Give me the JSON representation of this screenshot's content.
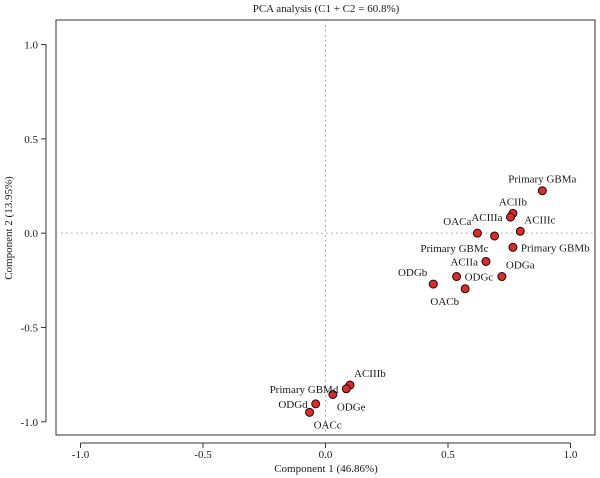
{
  "chart_data": {
    "type": "scatter",
    "title": "PCA analysis (C1 + C2 = 60.8%)",
    "xlabel": "Component 1 (46.86%)",
    "ylabel": "Component 2 (13.95%)",
    "xlim": [
      -1.1,
      1.1
    ],
    "ylim": [
      -1.07,
      1.13
    ],
    "xticks": [
      -1.0,
      -0.5,
      0.0,
      0.5,
      1.0
    ],
    "xtick_labels": [
      "-1.0",
      "-0.5",
      "0.0",
      "0.5",
      "1.0"
    ],
    "yticks": [
      -1.0,
      -0.5,
      0.0,
      0.5,
      1.0
    ],
    "ytick_labels": [
      "-1.0",
      "-0.5",
      "0.0",
      "0.5",
      "1.0"
    ],
    "reference_lines": {
      "x": 0.0,
      "y": 0.0
    },
    "point_color": "#d32f2f",
    "points": [
      {
        "label": "Primary GBMa",
        "x": 0.885,
        "y": 0.225,
        "label_pos": "above"
      },
      {
        "label": "ACIIb",
        "x": 0.765,
        "y": 0.105,
        "label_pos": "above"
      },
      {
        "label": "ACIIIa",
        "x": 0.755,
        "y": 0.085,
        "label_pos": "left"
      },
      {
        "label": "ACIIIc",
        "x": 0.795,
        "y": 0.01,
        "label_pos": "above-right"
      },
      {
        "label": "OACa",
        "x": 0.62,
        "y": 0.0,
        "label_pos": "above-left"
      },
      {
        "label": "Primary GBMc",
        "x": 0.69,
        "y": -0.015,
        "label_pos": "below-left"
      },
      {
        "label": "Primary GBMb",
        "x": 0.765,
        "y": -0.075,
        "label_pos": "right"
      },
      {
        "label": "ACIIa",
        "x": 0.655,
        "y": -0.15,
        "label_pos": "left"
      },
      {
        "label": "ODGa",
        "x": 0.72,
        "y": -0.23,
        "label_pos": "above-right"
      },
      {
        "label": "ODGc",
        "x": 0.535,
        "y": -0.23,
        "label_pos": "right"
      },
      {
        "label": "ODGb",
        "x": 0.44,
        "y": -0.27,
        "label_pos": "above-left"
      },
      {
        "label": "OACb",
        "x": 0.57,
        "y": -0.295,
        "label_pos": "below-left"
      },
      {
        "label": "ACIIIb",
        "x": 0.1,
        "y": -0.805,
        "label_pos": "above-right"
      },
      {
        "label": "Primary GBMd",
        "x": 0.085,
        "y": -0.825,
        "label_pos": "left"
      },
      {
        "label": "ODGe",
        "x": 0.03,
        "y": -0.855,
        "label_pos": "below-right"
      },
      {
        "label": "ODGd",
        "x": -0.04,
        "y": -0.905,
        "label_pos": "left"
      },
      {
        "label": "OACc",
        "x": -0.065,
        "y": -0.95,
        "label_pos": "below-right"
      }
    ]
  }
}
